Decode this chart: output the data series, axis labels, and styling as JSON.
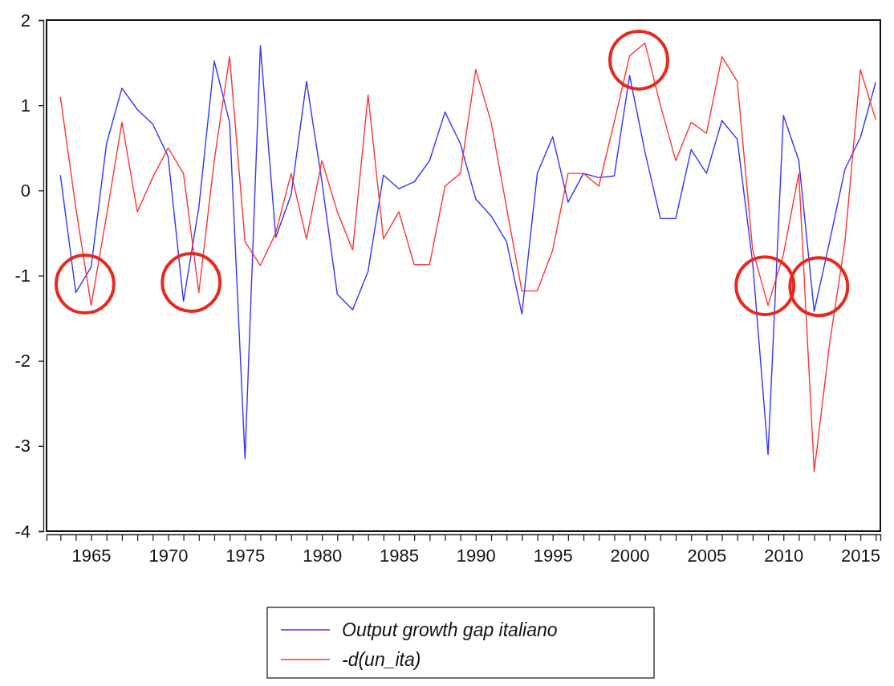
{
  "chart_data": {
    "type": "line",
    "x": [
      1963,
      1964,
      1965,
      1966,
      1967,
      1968,
      1969,
      1970,
      1971,
      1972,
      1973,
      1974,
      1975,
      1976,
      1977,
      1978,
      1979,
      1980,
      1981,
      1982,
      1983,
      1984,
      1985,
      1986,
      1987,
      1988,
      1989,
      1990,
      1991,
      1992,
      1993,
      1994,
      1995,
      1996,
      1997,
      1998,
      1999,
      2000,
      2001,
      2002,
      2003,
      2004,
      2005,
      2006,
      2007,
      2008,
      2009,
      2010,
      2011,
      2012,
      2013,
      2014,
      2015,
      2016
    ],
    "series": [
      {
        "name": "Output growth gap italiano",
        "color": "#3333ff",
        "values": [
          0.18,
          -1.2,
          -0.9,
          0.55,
          1.2,
          0.95,
          0.78,
          0.4,
          -1.3,
          -0.2,
          1.52,
          0.8,
          -3.15,
          1.7,
          -0.55,
          -0.05,
          1.28,
          0.1,
          -1.22,
          -1.4,
          -0.95,
          0.18,
          0.02,
          0.1,
          0.35,
          0.92,
          0.55,
          -0.1,
          -0.3,
          -0.6,
          -1.45,
          0.2,
          0.63,
          -0.14,
          0.2,
          0.15,
          0.17,
          1.35,
          0.45,
          -0.33,
          -0.33,
          0.48,
          0.2,
          0.82,
          0.6,
          -0.85,
          -3.1,
          0.88,
          0.35,
          -1.42,
          -0.6,
          0.25,
          0.62,
          1.27
        ]
      },
      {
        "name": "-d(un_ita)",
        "color": "#ff3333",
        "values": [
          1.1,
          -0.2,
          -1.35,
          -0.3,
          0.8,
          -0.25,
          0.15,
          0.5,
          0.2,
          -1.2,
          0.35,
          1.57,
          -0.6,
          -0.88,
          -0.5,
          0.2,
          -0.57,
          0.35,
          -0.25,
          -0.7,
          1.12,
          -0.57,
          -0.25,
          -0.87,
          -0.87,
          0.05,
          0.2,
          1.42,
          0.8,
          -0.2,
          -1.18,
          -1.18,
          -0.7,
          0.2,
          0.2,
          0.05,
          0.8,
          1.58,
          1.73,
          1.0,
          0.35,
          0.8,
          0.67,
          1.57,
          1.28,
          -0.7,
          -1.35,
          -0.75,
          0.2,
          -3.3,
          -1.8,
          -0.6,
          1.42,
          0.83
        ]
      }
    ],
    "xlim": [
      1962.1,
      2016.3
    ],
    "xticks": [
      {
        "value": 1963,
        "label": null
      },
      {
        "value": 1964,
        "label": null
      },
      1965,
      {
        "value": 1966,
        "label": null
      },
      {
        "value": 1967,
        "label": null
      },
      {
        "value": 1968,
        "label": null
      },
      {
        "value": 1969,
        "label": null
      },
      1970,
      {
        "value": 1971,
        "label": null
      },
      {
        "value": 1972,
        "label": null
      },
      {
        "value": 1973,
        "label": null
      },
      {
        "value": 1974,
        "label": null
      },
      1975,
      {
        "value": 1976,
        "label": null
      },
      {
        "value": 1977,
        "label": null
      },
      {
        "value": 1978,
        "label": null
      },
      {
        "value": 1979,
        "label": null
      },
      1980,
      {
        "value": 1981,
        "label": null
      },
      {
        "value": 1982,
        "label": null
      },
      {
        "value": 1983,
        "label": null
      },
      {
        "value": 1984,
        "label": null
      },
      1985,
      {
        "value": 1986,
        "label": null
      },
      {
        "value": 1987,
        "label": null
      },
      {
        "value": 1988,
        "label": null
      },
      {
        "value": 1989,
        "label": null
      },
      1990,
      {
        "value": 1991,
        "label": null
      },
      {
        "value": 1992,
        "label": null
      },
      {
        "value": 1993,
        "label": null
      },
      {
        "value": 1994,
        "label": null
      },
      1995,
      {
        "value": 1996,
        "label": null
      },
      {
        "value": 1997,
        "label": null
      },
      {
        "value": 1998,
        "label": null
      },
      {
        "value": 1999,
        "label": null
      },
      2000,
      {
        "value": 2001,
        "label": null
      },
      {
        "value": 2002,
        "label": null
      },
      {
        "value": 2003,
        "label": null
      },
      {
        "value": 2004,
        "label": null
      },
      2005,
      {
        "value": 2006,
        "label": null
      },
      {
        "value": 2007,
        "label": null
      },
      {
        "value": 2008,
        "label": null
      },
      {
        "value": 2009,
        "label": null
      },
      2010,
      {
        "value": 2011,
        "label": null
      },
      {
        "value": 2012,
        "label": null
      },
      {
        "value": 2013,
        "label": null
      },
      {
        "value": 2014,
        "label": null
      },
      2015,
      {
        "value": 2016,
        "label": null
      }
    ],
    "ylim": [
      -4,
      2
    ],
    "yticks": [
      -4,
      -3,
      -2,
      -1,
      0,
      1,
      2
    ],
    "legend": "bottom",
    "grid": false
  }
}
